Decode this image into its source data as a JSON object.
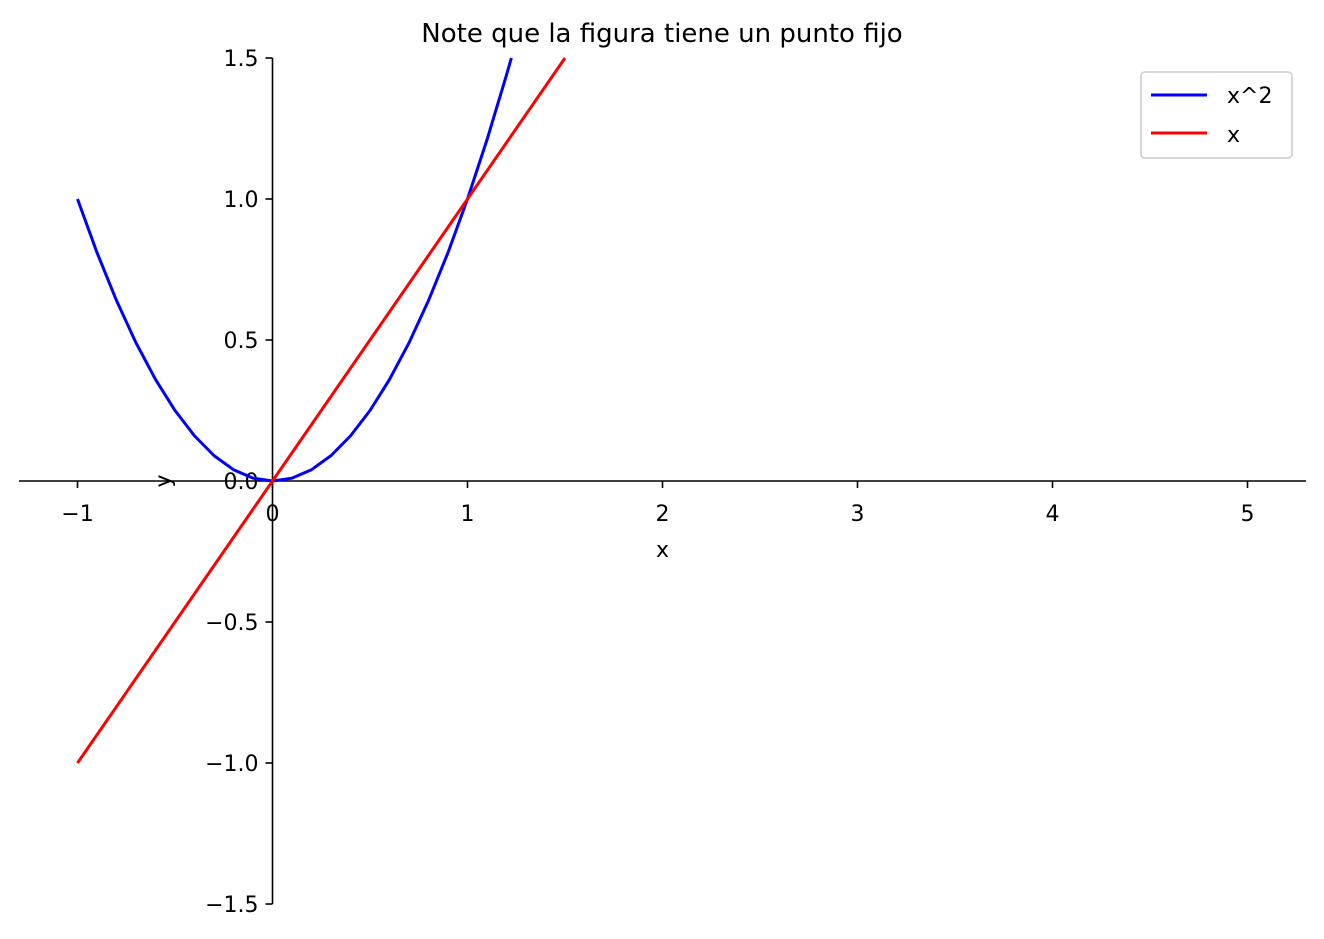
{
  "chart_data": {
    "type": "line",
    "title": "Note que la figura tiene un punto fijo",
    "xlabel": "x",
    "ylabel": "y",
    "xlim": [
      -1.3,
      5.3
    ],
    "ylim": [
      -1.5,
      1.5
    ],
    "xticks": [
      -1,
      0,
      1,
      2,
      3,
      4,
      5
    ],
    "xtick_labels": [
      "−1",
      "0",
      "1",
      "2",
      "3",
      "4",
      "5"
    ],
    "yticks": [
      -1.5,
      -1.0,
      -0.5,
      0.0,
      0.5,
      1.0,
      1.5
    ],
    "ytick_labels": [
      "−1.5",
      "−1.0",
      "−0.5",
      "0.0",
      "0.5",
      "1.0",
      "1.5"
    ],
    "spines": "centered at origin",
    "grid": false,
    "legend_position": "top-right",
    "series": [
      {
        "name": "x^2",
        "color": "#0000ff",
        "x": [
          -1.0,
          -0.9,
          -0.8,
          -0.7,
          -0.6,
          -0.5,
          -0.4,
          -0.3,
          -0.2,
          -0.1,
          0.0,
          0.1,
          0.2,
          0.3,
          0.4,
          0.5,
          0.6,
          0.7,
          0.8,
          0.9,
          1.0,
          1.1,
          1.2,
          1.225
        ],
        "y": [
          1.0,
          0.81,
          0.64,
          0.49,
          0.36,
          0.25,
          0.16,
          0.09,
          0.04,
          0.01,
          0.0,
          0.01,
          0.04,
          0.09,
          0.16,
          0.25,
          0.36,
          0.49,
          0.64,
          0.81,
          1.0,
          1.21,
          1.44,
          1.5
        ]
      },
      {
        "name": "x",
        "color": "#ff0000",
        "x": [
          -1.0,
          1.5
        ],
        "y": [
          -1.0,
          1.5
        ]
      }
    ]
  }
}
